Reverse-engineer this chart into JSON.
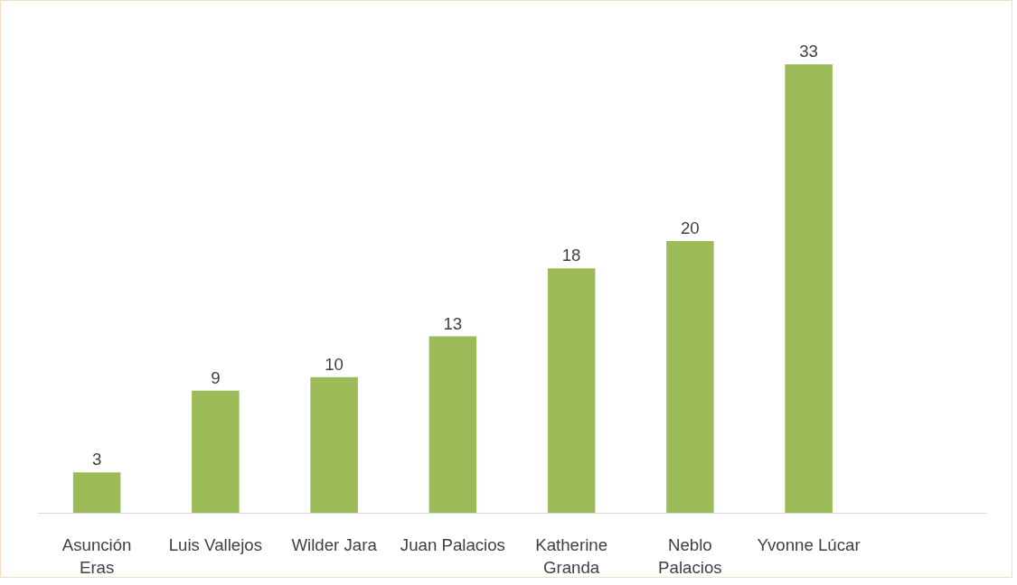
{
  "chart_data": {
    "type": "bar",
    "categories": [
      "Asunción\nEras",
      "Luis Vallejos",
      "Wilder Jara",
      "Juan Palacios",
      "Katherine\nGranda",
      "Neblo\nPalacios",
      "Yvonne Lúcar",
      null
    ],
    "values": [
      3,
      9,
      10,
      13,
      18,
      20,
      33,
      null
    ],
    "color": "#9bbb59",
    "data_labels": true,
    "grid": false
  }
}
